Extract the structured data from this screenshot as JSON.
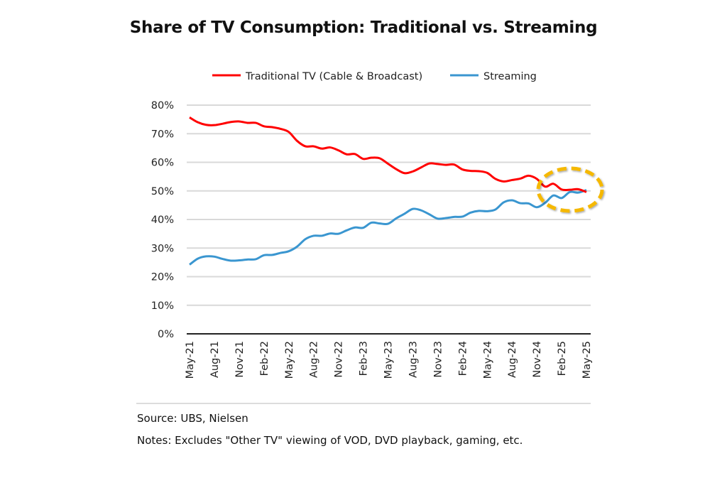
{
  "chart_data": {
    "type": "line",
    "title": "Share of TV Consumption: Traditional vs. Streaming",
    "xlabel": "",
    "ylabel": "",
    "ylim": [
      0,
      80
    ],
    "yticks": [
      "0%",
      "10%",
      "20%",
      "30%",
      "40%",
      "50%",
      "60%",
      "70%",
      "80%"
    ],
    "grid": true,
    "legend_position": "top",
    "x_start": "May-21",
    "x_end": "May-25",
    "x_frequency": "monthly",
    "xticks": [
      "May-21",
      "Aug-21",
      "Nov-21",
      "Feb-22",
      "May-22",
      "Aug-22",
      "Nov-22",
      "Feb-23",
      "May-23",
      "Aug-23",
      "Nov-23",
      "Feb-24",
      "May-24",
      "Aug-24",
      "Nov-24",
      "Feb-25",
      "May-25"
    ],
    "series": [
      {
        "name": "Traditional TV (Cable & Broadcast)",
        "color": "#ff0000",
        "values": [
          75.7,
          74.0,
          73.1,
          73.0,
          73.5,
          74.1,
          74.3,
          73.8,
          73.8,
          72.6,
          72.3,
          71.7,
          70.6,
          67.5,
          65.6,
          65.6,
          64.8,
          65.2,
          64.2,
          62.8,
          62.9,
          61.2,
          61.6,
          61.4,
          59.5,
          57.6,
          56.2,
          56.8,
          58.2,
          59.6,
          59.4,
          59.1,
          59.2,
          57.5,
          57.0,
          56.9,
          56.3,
          54.2,
          53.3,
          53.8,
          54.3,
          55.3,
          54.2,
          51.5,
          52.5,
          50.5,
          50.4,
          50.6,
          49.6
        ]
      },
      {
        "name": "Streaming",
        "color": "#3a96d0",
        "values": [
          24.2,
          26.3,
          27.1,
          27.0,
          26.2,
          25.6,
          25.7,
          26.0,
          26.1,
          27.5,
          27.6,
          28.3,
          28.9,
          30.5,
          33.1,
          34.3,
          34.3,
          35.1,
          35.0,
          36.2,
          37.2,
          37.1,
          38.9,
          38.6,
          38.5,
          40.4,
          42.0,
          43.7,
          43.2,
          41.8,
          40.3,
          40.5,
          40.9,
          41.0,
          42.4,
          43.0,
          42.9,
          43.5,
          46.0,
          46.7,
          45.7,
          45.6,
          44.3,
          45.8,
          48.4,
          47.5,
          49.6,
          49.4,
          50.3
        ]
      }
    ],
    "annotation": {
      "shape": "dashed-ellipse",
      "color": "#f5b800",
      "around": "crossover near Feb-25 to May-25 at 50%"
    }
  },
  "footer": {
    "source": "Source: UBS, Nielsen",
    "notes": "Notes: Excludes \"Other TV\" viewing of VOD, DVD playback, gaming, etc."
  }
}
